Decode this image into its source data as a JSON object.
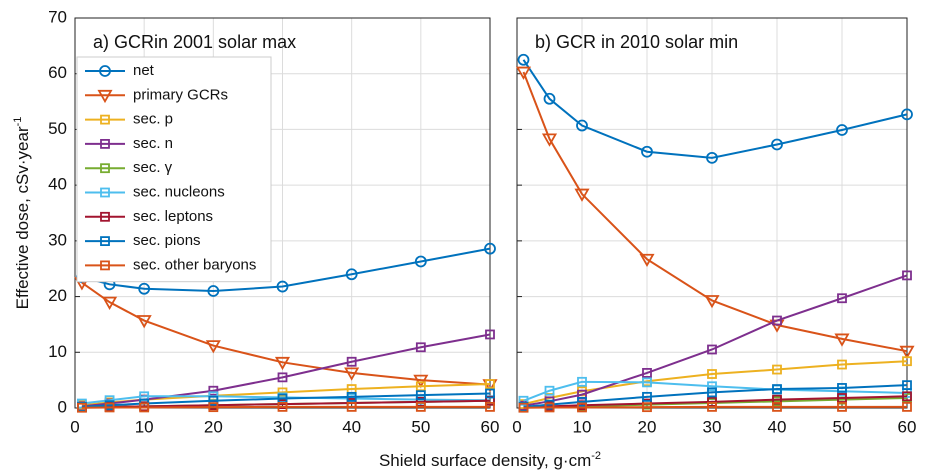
{
  "xlabel": {
    "text": "Shield surface density, g·cm",
    "superscript": "-2"
  },
  "ylabel": {
    "text": "Effective dose, cSv·year",
    "superscript": "-1"
  },
  "chart_data": [
    {
      "type": "line",
      "title": "a) GCRin 2001 solar max",
      "legend": "upper left",
      "grid": true,
      "x": [
        1,
        5,
        10,
        20,
        30,
        40,
        50,
        60
      ],
      "xlim": [
        0,
        60
      ],
      "xticks": [
        0,
        10,
        20,
        30,
        40,
        50,
        60
      ],
      "ylim": [
        0,
        70
      ],
      "yticks": [
        0,
        10,
        20,
        30,
        40,
        50,
        60,
        70
      ],
      "show_ytick_labels": true,
      "series": [
        {
          "name": "net",
          "color": "#0072BD",
          "marker": "o",
          "values": [
            23.5,
            22.2,
            21.4,
            21.0,
            21.8,
            24.0,
            26.3,
            28.6
          ]
        },
        {
          "name": "primary GCRs",
          "color": "#D95319",
          "marker": "v",
          "values": [
            22.5,
            19.0,
            15.7,
            11.2,
            8.2,
            6.3,
            5.0,
            4.2
          ]
        },
        {
          "name": "sec. p",
          "color": "#EDB120",
          "marker": "s",
          "values": [
            0.5,
            1.0,
            1.5,
            2.2,
            2.8,
            3.4,
            3.9,
            4.3
          ]
        },
        {
          "name": "sec. n",
          "color": "#7E2F8E",
          "marker": "s",
          "values": [
            0.3,
            0.8,
            1.5,
            3.1,
            5.5,
            8.3,
            10.9,
            13.2
          ]
        },
        {
          "name": "sec. γ",
          "color": "#77AC30",
          "marker": "s",
          "values": [
            0.1,
            0.2,
            0.3,
            0.5,
            0.7,
            0.9,
            1.1,
            1.3
          ]
        },
        {
          "name": "sec. nucleons",
          "color": "#4DBEEE",
          "marker": "s",
          "values": [
            0.8,
            1.4,
            2.1,
            2.1,
            1.9,
            1.7,
            1.5,
            1.4
          ]
        },
        {
          "name": "sec. leptons",
          "color": "#A2142F",
          "marker": "s",
          "values": [
            0.1,
            0.2,
            0.3,
            0.5,
            0.7,
            0.9,
            1.1,
            1.3
          ]
        },
        {
          "name": "sec. pions",
          "color": "#0072BD",
          "marker": "s",
          "values": [
            0.2,
            0.5,
            0.8,
            1.3,
            1.7,
            2.0,
            2.3,
            2.6
          ]
        },
        {
          "name": "sec. other baryons",
          "color": "#D95319",
          "marker": "s",
          "values": [
            0.05,
            0.1,
            0.1,
            0.15,
            0.2,
            0.2,
            0.2,
            0.2
          ]
        }
      ]
    },
    {
      "type": "line",
      "title": "b) GCR in 2010 solar min",
      "grid": true,
      "x": [
        1,
        5,
        10,
        20,
        30,
        40,
        50,
        60
      ],
      "xlim": [
        0,
        60
      ],
      "xticks": [
        0,
        10,
        20,
        30,
        40,
        50,
        60
      ],
      "ylim": [
        0,
        70
      ],
      "yticks": [
        0,
        10,
        20,
        30,
        40,
        50,
        60,
        70
      ],
      "show_ytick_labels": false,
      "series": [
        {
          "color": "#0072BD",
          "marker": "o",
          "values": [
            62.5,
            55.5,
            50.7,
            46.0,
            44.9,
            47.3,
            49.9,
            52.7
          ]
        },
        {
          "color": "#D95319",
          "marker": "v",
          "values": [
            60.3,
            48.3,
            38.4,
            26.7,
            19.3,
            14.9,
            12.4,
            10.2
          ]
        },
        {
          "color": "#EDB120",
          "marker": "s",
          "values": [
            0.7,
            1.8,
            3.0,
            4.8,
            6.1,
            6.9,
            7.8,
            8.4
          ]
        },
        {
          "color": "#7E2F8E",
          "marker": "s",
          "values": [
            0.4,
            1.2,
            2.4,
            6.3,
            10.5,
            15.7,
            19.7,
            23.8
          ]
        },
        {
          "color": "#77AC30",
          "marker": "s",
          "values": [
            0.1,
            0.2,
            0.3,
            0.6,
            0.9,
            1.2,
            1.5,
            1.8
          ]
        },
        {
          "color": "#4DBEEE",
          "marker": "s",
          "values": [
            1.3,
            3.1,
            4.7,
            4.6,
            3.9,
            3.3,
            3.0,
            2.7
          ]
        },
        {
          "color": "#A2142F",
          "marker": "s",
          "values": [
            0.1,
            0.3,
            0.5,
            0.8,
            1.1,
            1.5,
            1.8,
            2.1
          ]
        },
        {
          "color": "#0072BD",
          "marker": "s",
          "values": [
            0.2,
            0.6,
            1.1,
            2.0,
            2.8,
            3.4,
            3.6,
            4.1
          ]
        },
        {
          "color": "#D95319",
          "marker": "s",
          "values": [
            0.05,
            0.1,
            0.1,
            0.15,
            0.2,
            0.2,
            0.2,
            0.2
          ]
        }
      ]
    }
  ]
}
